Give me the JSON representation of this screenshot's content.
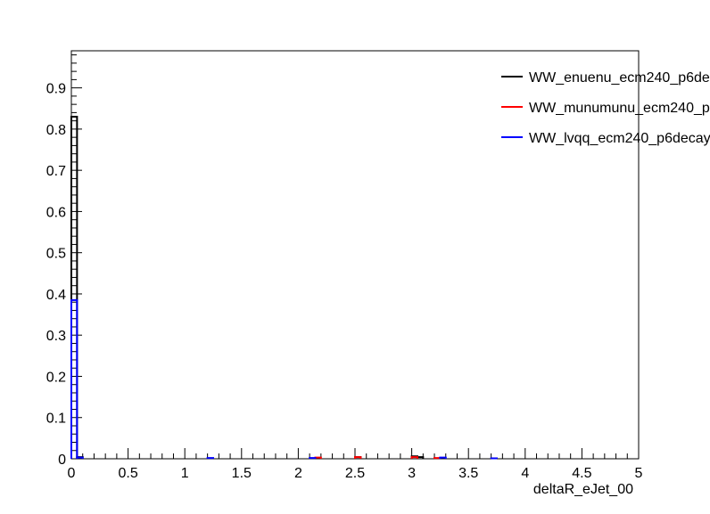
{
  "chart_data": {
    "type": "line",
    "title": "",
    "xlabel": "deltaR_eJet_00",
    "ylabel": "",
    "xlim": [
      0,
      5
    ],
    "ylim": [
      0,
      0.99
    ],
    "x_ticks": [
      0,
      0.5,
      1,
      1.5,
      2,
      2.5,
      3,
      3.5,
      4,
      4.5,
      5
    ],
    "x_tick_labels": [
      "0",
      "0.5",
      "1",
      "1.5",
      "2",
      "2.5",
      "3",
      "3.5",
      "4",
      "4.5",
      "5"
    ],
    "y_ticks": [
      0,
      0.1,
      0.2,
      0.3,
      0.4,
      0.5,
      0.6,
      0.7,
      0.8,
      0.9
    ],
    "y_tick_labels": [
      "0",
      "0.1",
      "0.2",
      "0.3",
      "0.4",
      "0.5",
      "0.6",
      "0.7",
      "0.8",
      "0.9"
    ],
    "grid": false,
    "legend_position": "top-right",
    "bin_width": 0.05,
    "series": [
      {
        "name": "WW_enuenu_ecm240_p6de",
        "color": "#000000",
        "bins": [
          {
            "x": 0.0,
            "y": 0.83
          },
          {
            "x": 0.05,
            "y": 0.004
          },
          {
            "x": 2.5,
            "y": 0.004
          },
          {
            "x": 3.0,
            "y": 0.006
          },
          {
            "x": 3.05,
            "y": 0.004
          }
        ]
      },
      {
        "name": "WW_munumunu_ecm240_p",
        "color": "#ff0000",
        "bins": [
          {
            "x": 2.15,
            "y": 0.003
          },
          {
            "x": 2.5,
            "y": 0.004
          },
          {
            "x": 3.0,
            "y": 0.004
          },
          {
            "x": 3.2,
            "y": 0.002
          }
        ]
      },
      {
        "name": "WW_lvqq_ecm240_p6decay",
        "color": "#0000ff",
        "bins": [
          {
            "x": 0.0,
            "y": 0.385
          },
          {
            "x": 0.05,
            "y": 0.003
          },
          {
            "x": 1.2,
            "y": 0.002
          },
          {
            "x": 2.1,
            "y": 0.002
          },
          {
            "x": 3.25,
            "y": 0.003
          },
          {
            "x": 3.7,
            "y": 0.001
          }
        ]
      }
    ]
  }
}
